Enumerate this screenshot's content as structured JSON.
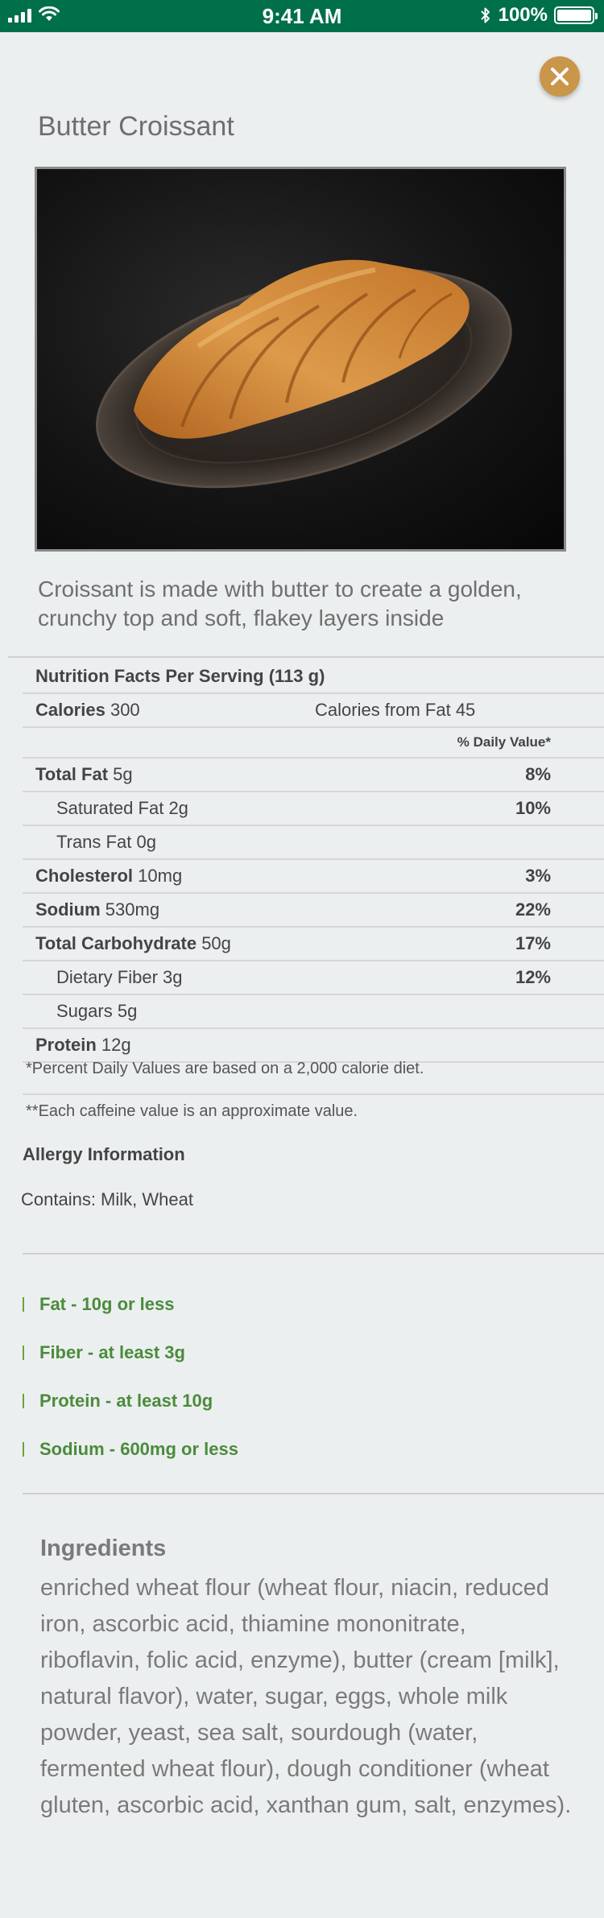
{
  "status_bar": {
    "time": "9:41 AM",
    "battery": "100%"
  },
  "product": {
    "title": "Butter Croissant",
    "image_alt": "croissant-photo",
    "description": "Croissant is made with butter to create a golden, crunchy top and soft, flakey layers inside"
  },
  "nutrition": {
    "header": "Nutrition Facts Per Serving (113 g)",
    "calories_label": "Calories",
    "calories_value": "300",
    "calories_fat": "Calories from Fat 45",
    "daily_value_header": "% Daily Value*",
    "rows": [
      {
        "label": "Total Fat",
        "value": "5g",
        "pct": "8%"
      },
      {
        "label": "Saturated Fat",
        "value": "2g",
        "pct": "10%"
      },
      {
        "label": "Trans Fat",
        "value": "0g",
        "pct": ""
      },
      {
        "label": "Cholesterol",
        "value": "10mg",
        "pct": "3%"
      },
      {
        "label": "Sodium",
        "value": "530mg",
        "pct": "22%"
      },
      {
        "label": "Total Carbohydrate",
        "value": "50g",
        "pct": "17%"
      },
      {
        "label": "Dietary Fiber",
        "value": "3g",
        "pct": "12%"
      },
      {
        "label": "Sugars",
        "value": "5g",
        "pct": ""
      },
      {
        "label": "Protein",
        "value": "12g",
        "pct": ""
      }
    ],
    "note_daily": "*Percent Daily Values are based on a 2,000 calorie diet.",
    "note_caffeine": "**Each caffeine value is an approximate value."
  },
  "allergy": {
    "title": "Allergy Information",
    "text": "Contains: Milk, Wheat"
  },
  "guides": [
    "Fat - 10g or less",
    "Fiber - at least 3g",
    "Protein - at least 10g",
    "Sodium - 600mg or less"
  ],
  "ingredients": {
    "title": "Ingredients",
    "text": "enriched wheat flour (wheat flour, niacin, reduced iron, ascorbic acid, thiamine mononitrate, riboflavin, folic acid, enzyme), butter (cream [milk], natural flavor), water, sugar, eggs, whole milk powder, yeast, sea salt, sourdough (water, fermented wheat flour), dough conditioner (wheat gluten, ascorbic acid, xanthan gum, salt, enzymes)."
  },
  "colors": {
    "status_bar": "#00704a",
    "close_button": "#c9964a",
    "guide_text": "#4a8c3b",
    "background": "#eceff0"
  }
}
